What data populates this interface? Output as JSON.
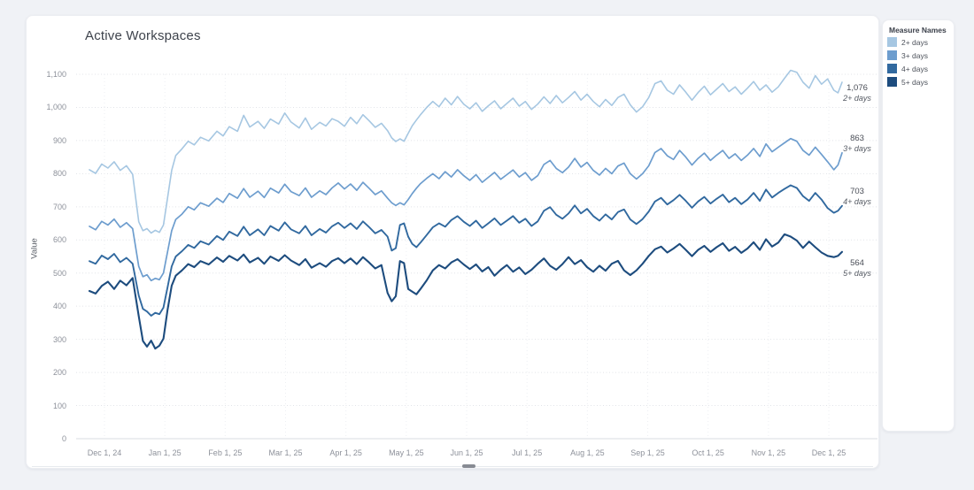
{
  "card": {
    "title": "Active Workspaces"
  },
  "legend": {
    "title": "Measure Names",
    "items": [
      {
        "label": "2+ days",
        "color": "#a6c7e2"
      },
      {
        "label": "3+ days",
        "color": "#6d9dce"
      },
      {
        "label": "4+ days",
        "color": "#31699f"
      },
      {
        "label": "5+ days",
        "color": "#1d4c7e"
      }
    ]
  },
  "chart_data": {
    "type": "line",
    "title": "Active Workspaces",
    "xlabel": "",
    "ylabel": "Value",
    "grid": "dotted horizontal and faint vertical month gridlines",
    "legend_position": "top-right panel",
    "y_axis": {
      "min": 0,
      "max": 1100,
      "ticks": [
        0,
        100,
        200,
        300,
        400,
        500,
        600,
        700,
        800,
        900,
        1000,
        1100
      ],
      "tick_labels": [
        "0",
        "100",
        "200",
        "300",
        "400",
        "500",
        "600",
        "700",
        "800",
        "900",
        "1,000",
        "1,100"
      ]
    },
    "x_axis": {
      "tick_days": [
        0,
        31,
        62,
        90,
        121,
        151,
        182,
        212,
        243,
        274,
        304,
        335,
        365
      ],
      "tick_labels": [
        "Dec 1, 24",
        "Jan 1, 25",
        "Feb 1, 25",
        "Mar 1, 25",
        "Apr 1, 25",
        "May 1, 25",
        "Jun 1, 25",
        "Jul 1, 25",
        "Aug 1, 25",
        "Sep 1, 25",
        "Oct 1, 25",
        "Nov 1, 25",
        "Dec 1, 25"
      ]
    },
    "days": [
      0,
      3,
      6,
      9,
      12,
      15,
      18,
      21,
      24,
      26,
      28,
      30,
      32,
      34,
      36,
      38,
      40,
      42,
      45,
      48,
      51,
      54,
      58,
      62,
      65,
      68,
      72,
      75,
      78,
      82,
      85,
      88,
      92,
      95,
      98,
      102,
      105,
      108,
      112,
      115,
      118,
      121,
      124,
      127,
      130,
      133,
      136,
      139,
      142,
      145,
      147,
      149,
      151,
      153,
      155,
      157,
      159,
      161,
      164,
      167,
      170,
      173,
      176,
      179,
      182,
      185,
      188,
      191,
      194,
      197,
      200,
      203,
      206,
      209,
      212,
      215,
      218,
      221,
      224,
      227,
      230,
      233,
      236,
      239,
      242,
      245,
      248,
      251,
      254,
      257,
      260,
      263,
      266,
      269,
      272,
      275,
      278,
      281,
      284,
      287,
      290,
      293,
      296,
      299,
      302,
      305,
      308,
      311,
      314,
      317,
      320,
      323,
      326,
      329,
      332,
      335,
      338,
      341,
      344,
      347,
      350,
      353,
      356,
      359,
      362,
      364,
      366
    ],
    "series": [
      {
        "name": "2+ days",
        "color": "#a6c7e2",
        "end_value": 1076,
        "end_value_label": "1,076",
        "end_sub_label": "2+ days",
        "label_dy": 7,
        "values": [
          812,
          801,
          829,
          817,
          836,
          810,
          824,
          798,
          655,
          628,
          634,
          621,
          629,
          623,
          645,
          728,
          810,
          855,
          875,
          898,
          887,
          910,
          899,
          928,
          914,
          942,
          928,
          976,
          941,
          958,
          937,
          965,
          950,
          983,
          956,
          938,
          968,
          934,
          955,
          944,
          966,
          958,
          943,
          970,
          951,
          978,
          960,
          940,
          952,
          930,
          908,
          897,
          905,
          898,
          922,
          945,
          962,
          978,
          1000,
          1018,
          1002,
          1028,
          1008,
          1033,
          1010,
          996,
          1014,
          988,
          1005,
          1020,
          996,
          1012,
          1028,
          1004,
          1018,
          994,
          1010,
          1032,
          1012,
          1036,
          1014,
          1030,
          1048,
          1022,
          1040,
          1018,
          1002,
          1024,
          1006,
          1030,
          1040,
          1008,
          986,
          1002,
          1030,
          1072,
          1080,
          1052,
          1040,
          1068,
          1046,
          1022,
          1045,
          1064,
          1038,
          1055,
          1072,
          1048,
          1062,
          1040,
          1058,
          1078,
          1052,
          1068,
          1046,
          1062,
          1088,
          1112,
          1106,
          1076,
          1058,
          1096,
          1070,
          1086,
          1052,
          1044,
          1076
        ]
      },
      {
        "name": "3+ days",
        "color": "#6d9dce",
        "end_value": 863,
        "end_value_label": "863",
        "end_sub_label": "3+ days",
        "label_dy": -16,
        "values": [
          641,
          631,
          656,
          645,
          663,
          638,
          652,
          634,
          520,
          489,
          495,
          477,
          484,
          480,
          500,
          565,
          628,
          662,
          678,
          700,
          691,
          712,
          702,
          726,
          713,
          740,
          726,
          755,
          729,
          747,
          728,
          756,
          742,
          768,
          746,
          734,
          757,
          729,
          748,
          737,
          757,
          772,
          754,
          769,
          750,
          774,
          756,
          737,
          748,
          726,
          712,
          704,
          712,
          706,
          722,
          740,
          756,
          770,
          786,
          800,
          785,
          806,
          790,
          812,
          794,
          780,
          797,
          774,
          789,
          804,
          783,
          797,
          811,
          790,
          803,
          780,
          794,
          828,
          840,
          816,
          803,
          820,
          846,
          820,
          834,
          810,
          796,
          816,
          800,
          823,
          832,
          800,
          784,
          800,
          824,
          864,
          876,
          854,
          843,
          870,
          850,
          826,
          846,
          862,
          840,
          856,
          870,
          846,
          860,
          840,
          856,
          876,
          852,
          890,
          866,
          880,
          893,
          906,
          898,
          870,
          856,
          880,
          858,
          836,
          812,
          826,
          863
        ]
      },
      {
        "name": "4+ days",
        "color": "#31699f",
        "end_value": 703,
        "end_value_label": "703",
        "end_sub_label": "4+ days",
        "label_dy": -16,
        "values": [
          536,
          528,
          553,
          542,
          558,
          533,
          546,
          528,
          432,
          392,
          384,
          371,
          380,
          376,
          396,
          458,
          520,
          550,
          566,
          585,
          576,
          596,
          586,
          612,
          600,
          625,
          612,
          640,
          614,
          632,
          614,
          642,
          628,
          653,
          632,
          620,
          642,
          614,
          633,
          622,
          641,
          652,
          636,
          650,
          633,
          656,
          639,
          620,
          630,
          610,
          568,
          575,
          645,
          650,
          610,
          588,
          578,
          592,
          615,
          638,
          650,
          640,
          660,
          672,
          655,
          642,
          658,
          636,
          650,
          665,
          645,
          658,
          672,
          652,
          664,
          642,
          656,
          688,
          699,
          676,
          664,
          680,
          704,
          680,
          694,
          672,
          658,
          677,
          662,
          684,
          692,
          662,
          648,
          663,
          686,
          716,
          727,
          707,
          720,
          736,
          718,
          697,
          716,
          730,
          710,
          724,
          737,
          714,
          727,
          708,
          722,
          742,
          718,
          752,
          728,
          742,
          754,
          765,
          757,
          732,
          718,
          742,
          722,
          696,
          682,
          688,
          703
        ]
      },
      {
        "name": "5+ days",
        "color": "#1d4c7e",
        "end_value": 564,
        "end_value_label": "564",
        "end_sub_label": "5+ days",
        "label_dy": 13,
        "values": [
          446,
          438,
          461,
          474,
          452,
          477,
          463,
          485,
          370,
          295,
          278,
          296,
          272,
          281,
          302,
          390,
          462,
          492,
          508,
          527,
          518,
          536,
          526,
          547,
          534,
          552,
          538,
          556,
          532,
          546,
          528,
          550,
          537,
          554,
          538,
          524,
          542,
          516,
          530,
          519,
          536,
          545,
          530,
          544,
          527,
          548,
          532,
          514,
          524,
          440,
          415,
          430,
          536,
          530,
          452,
          444,
          436,
          452,
          478,
          508,
          524,
          514,
          532,
          542,
          526,
          512,
          526,
          505,
          518,
          492,
          510,
          524,
          504,
          517,
          497,
          510,
          528,
          544,
          522,
          510,
          527,
          548,
          527,
          539,
          518,
          504,
          522,
          507,
          528,
          537,
          508,
          494,
          508,
          528,
          552,
          572,
          580,
          562,
          574,
          588,
          570,
          551,
          570,
          582,
          564,
          578,
          590,
          567,
          579,
          561,
          574,
          593,
          570,
          602,
          580,
          592,
          617,
          610,
          598,
          576,
          595,
          578,
          562,
          552,
          548,
          552,
          564
        ]
      }
    ]
  }
}
